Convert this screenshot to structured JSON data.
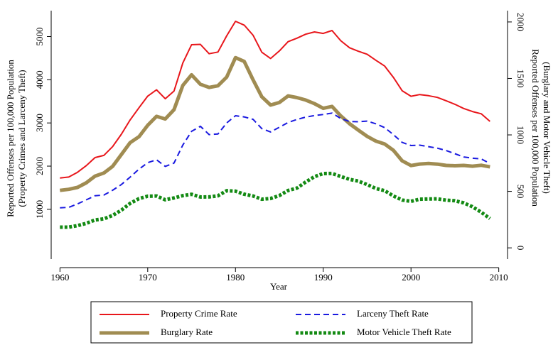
{
  "chart_data": {
    "type": "line",
    "x_label": "Year",
    "y_label": [
      "Reported Offenses per 100,000 Population",
      "(Property Crimes and Larceny Theft)"
    ],
    "y2_label": [
      "Reported Offenses per 100,000 Population",
      "(Burglary and Motor Vehicle Theft)"
    ],
    "x": [
      1960,
      1961,
      1962,
      1963,
      1964,
      1965,
      1966,
      1967,
      1968,
      1969,
      1970,
      1971,
      1972,
      1973,
      1974,
      1975,
      1976,
      1977,
      1978,
      1979,
      1980,
      1981,
      1982,
      1983,
      1984,
      1985,
      1986,
      1987,
      1988,
      1989,
      1990,
      1991,
      1992,
      1993,
      1994,
      1995,
      1996,
      1997,
      1998,
      1999,
      2000,
      2001,
      2002,
      2003,
      2004,
      2005,
      2006,
      2007,
      2008,
      2009
    ],
    "xlim": [
      1959,
      2011
    ],
    "xticks": [
      1960,
      1970,
      1980,
      1990,
      2000,
      2010
    ],
    "ylim": [
      -350,
      5600
    ],
    "yticks": [
      1000,
      2000,
      3000,
      4000,
      5000
    ],
    "y2lim": [
      -175,
      2100
    ],
    "y2ticks": [
      0,
      500,
      1000,
      1500,
      2000
    ],
    "series": [
      {
        "name": "Property Crime Rate",
        "color": "#e8161b",
        "dash": "solid",
        "width": 2,
        "values": [
          1726,
          1747,
          1857,
          2012,
          2197,
          2249,
          2450,
          2740,
          3071,
          3351,
          3621,
          3768,
          3561,
          3737,
          4389,
          4811,
          4820,
          4602,
          4642,
          5017,
          5353,
          5264,
          5032,
          4637,
          4492,
          4666,
          4881,
          4963,
          5054,
          5107,
          5073,
          5140,
          4903,
          4740,
          4660,
          4591,
          4451,
          4316,
          4053,
          3744,
          3618,
          3658,
          3631,
          3591,
          3514,
          3432,
          3335,
          3264,
          3212,
          3036
        ]
      },
      {
        "name": "Larceny Theft Rate",
        "color": "#1a1ae0",
        "dash": "dash",
        "width": 2,
        "values": [
          1035,
          1046,
          1124,
          1219,
          1315,
          1329,
          1442,
          1575,
          1746,
          1930,
          2079,
          2146,
          1994,
          2071,
          2489,
          2805,
          2922,
          2730,
          2744,
          2999,
          3167,
          3140,
          3084,
          2869,
          2791,
          2901,
          3010,
          3081,
          3135,
          3171,
          3195,
          3229,
          3103,
          3033,
          3027,
          3043,
          2980,
          2891,
          2729,
          2550,
          2477,
          2485,
          2450,
          2416,
          2362,
          2288,
          2213,
          2185,
          2167,
          2061
        ]
      },
      {
        "name": "Burglary Rate",
        "color": "#a08c52",
        "dash": "solid",
        "width": 5,
        "axis": "y2",
        "values": [
          509,
          518,
          535,
          576,
          635,
          663,
          721,
          827,
          932,
          984,
          1085,
          1164,
          1141,
          1223,
          1438,
          1532,
          1448,
          1420,
          1435,
          1512,
          1684,
          1650,
          1488,
          1338,
          1264,
          1287,
          1345,
          1330,
          1309,
          1277,
          1235,
          1252,
          1168,
          1099,
          1042,
          987,
          945,
          919,
          863,
          770,
          729,
          742,
          747,
          741,
          730,
          727,
          730,
          723,
          731,
          717
        ]
      },
      {
        "name": "Motor Vehicle Theft Rate",
        "color": "#138a13",
        "dash": "dot",
        "width": 5,
        "axis": "y2",
        "values": [
          183,
          183,
          197,
          217,
          247,
          257,
          287,
          334,
          394,
          436,
          457,
          459,
          426,
          442,
          462,
          474,
          450,
          451,
          461,
          506,
          502,
          475,
          459,
          431,
          437,
          463,
          508,
          529,
          583,
          630,
          658,
          659,
          632,
          606,
          591,
          560,
          526,
          506,
          459,
          423,
          412,
          431,
          433,
          434,
          422,
          417,
          398,
          364,
          315,
          259
        ]
      }
    ]
  }
}
